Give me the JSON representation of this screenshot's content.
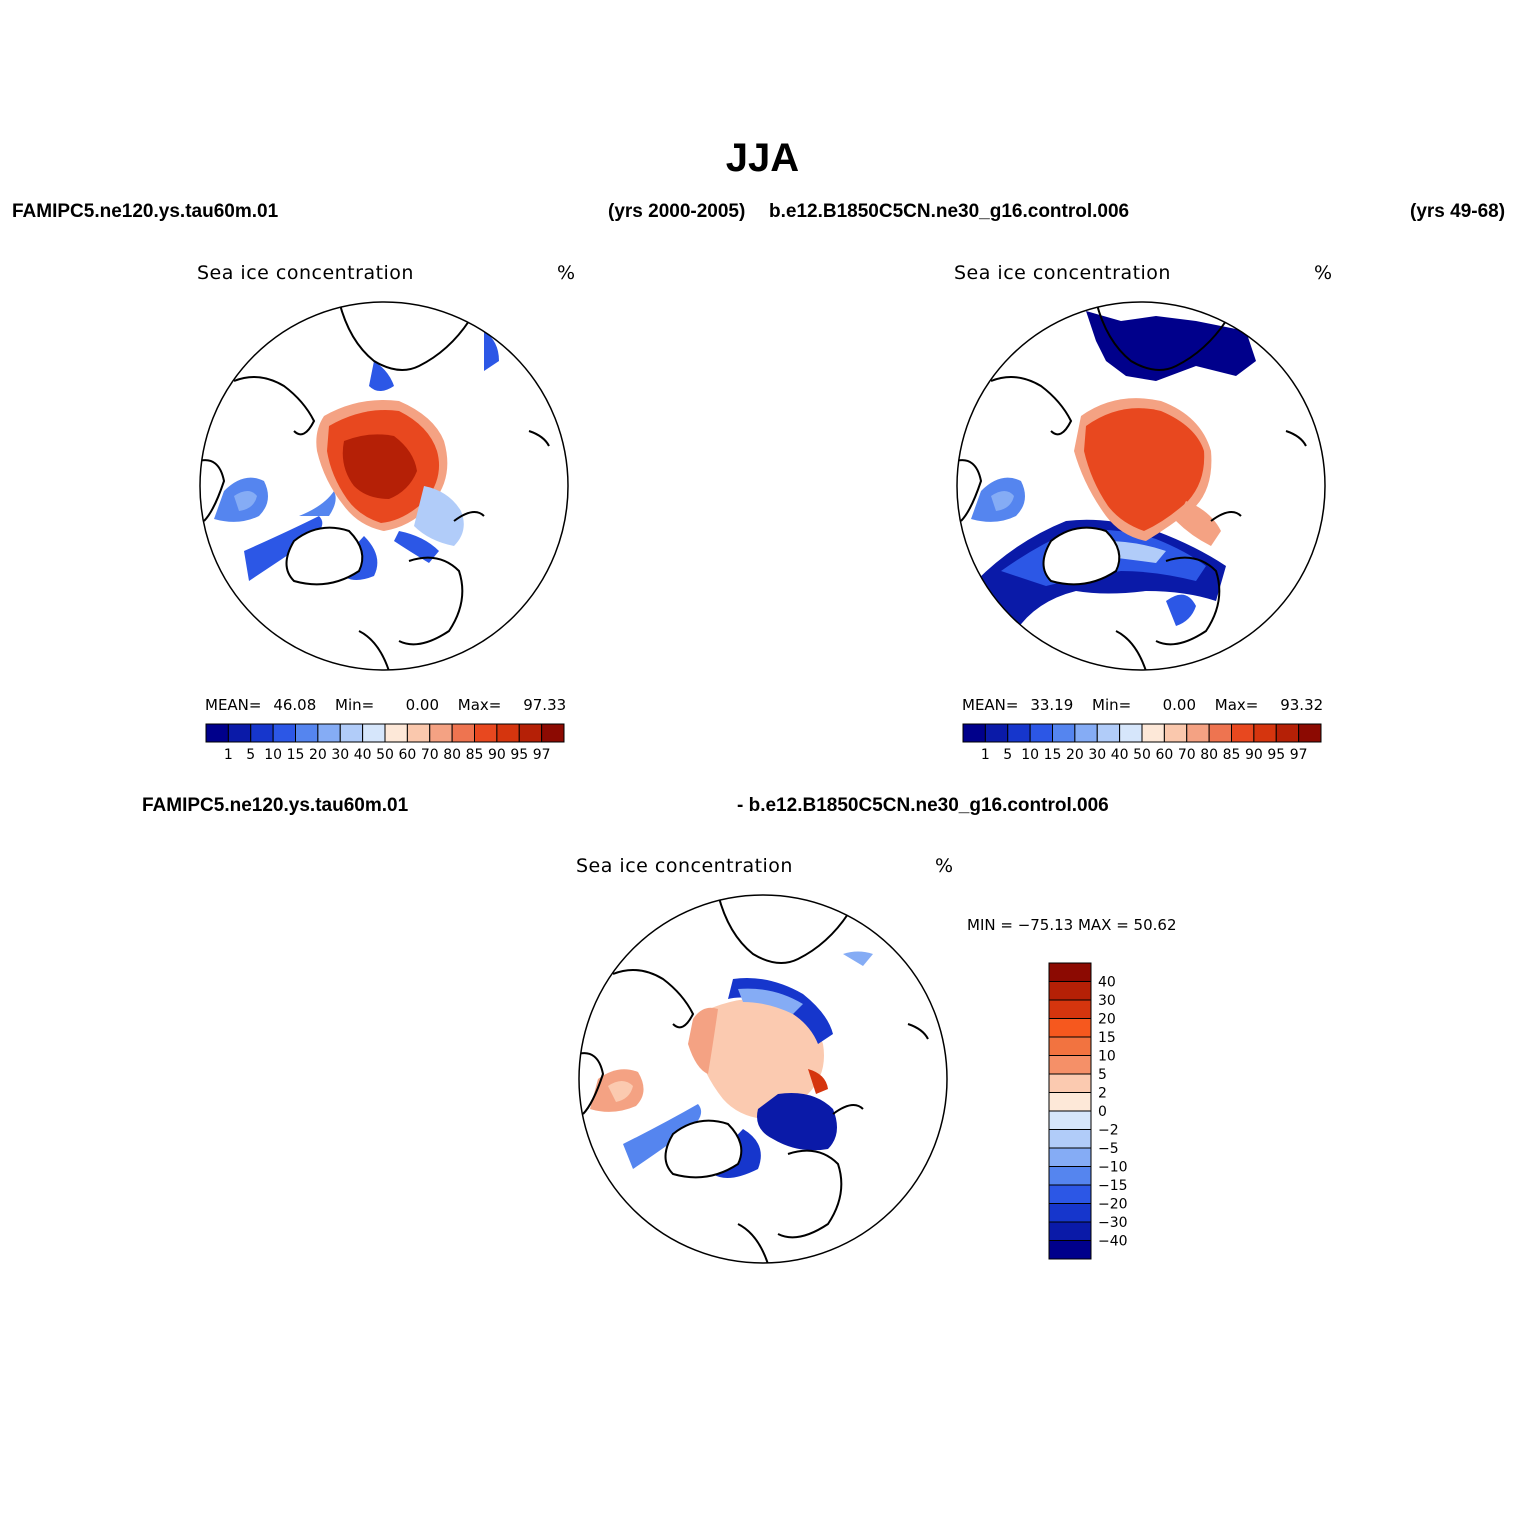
{
  "title": "JJA",
  "header": {
    "case1": "FAMIPC5.ne120.ys.tau60m.01",
    "case1_years": "(yrs 2000-2005)",
    "case2": "b.e12.B1850C5CN.ne30_g16.control.006",
    "case2_years": "(yrs 49-68)"
  },
  "panels": [
    {
      "title": "Sea ice concentration",
      "units": "%",
      "mean_label": "MEAN=",
      "mean_value": "46.08",
      "min_label": "Min=",
      "min_value": "0.00",
      "max_label": "Max=",
      "max_value": "97.33"
    },
    {
      "title": "Sea ice concentration",
      "units": "%",
      "mean_label": "MEAN=",
      "mean_value": "33.19",
      "min_label": "Min=",
      "min_value": "0.00",
      "max_label": "Max=",
      "max_value": "93.32"
    }
  ],
  "diff": {
    "case_a": "FAMIPC5.ne120.ys.tau60m.01",
    "case_b": "- b.e12.B1850C5CN.ne30_g16.control.006",
    "title": "Sea ice concentration",
    "units": "%",
    "minmax": "MIN = −75.13 MAX =   50.62"
  },
  "colorbar_main": {
    "colors": [
      "#00008b",
      "#0a1aa8",
      "#1636cc",
      "#2c57e6",
      "#5585ef",
      "#85acf5",
      "#b1ccf9",
      "#d6e6fb",
      "#fde8d8",
      "#fac8ad",
      "#f4a283",
      "#ee7450",
      "#e8481f",
      "#d5350e",
      "#b52006",
      "#8c0a02"
    ],
    "labels": [
      "1",
      "5",
      "10",
      "15",
      "20",
      "30",
      "40",
      "50",
      "60",
      "70",
      "80",
      "85",
      "90",
      "95",
      "97"
    ]
  },
  "colorbar_diff": {
    "colors": [
      "#8c0a02",
      "#b52006",
      "#d5350e",
      "#f6581e",
      "#f27340",
      "#f59068",
      "#fbcab0",
      "#fde8d8",
      "#d6e6fb",
      "#b1ccf9",
      "#85acf5",
      "#5585ef",
      "#2c57e6",
      "#1636cc",
      "#0a1aa8",
      "#00008b"
    ],
    "labels": [
      "40",
      "30",
      "20",
      "15",
      "10",
      "5",
      "2",
      "0",
      "−2",
      "−5",
      "−10",
      "−15",
      "−20",
      "−30",
      "−40"
    ]
  },
  "chart_data": {
    "type": "heatmap",
    "description_fields": "polar stereographic maps of JJA sea ice concentration (%)",
    "panels": [
      {
        "case": "FAMIPC5.ne120.ys.tau60m.01",
        "years": "2000-2005",
        "mean": 46.08,
        "min": 0.0,
        "max": 97.33
      },
      {
        "case": "b.e12.B1850C5CN.ne30_g16.control.006",
        "years": "49-68",
        "mean": 33.19,
        "min": 0.0,
        "max": 93.32
      },
      {
        "case": "difference",
        "min": -75.13,
        "max": 50.62
      }
    ],
    "levels_main": [
      1,
      5,
      10,
      15,
      20,
      30,
      40,
      50,
      60,
      70,
      80,
      85,
      90,
      95,
      97
    ],
    "levels_diff": [
      -40,
      -30,
      -20,
      -15,
      -10,
      -5,
      -2,
      0,
      2,
      5,
      10,
      15,
      20,
      30,
      40
    ]
  }
}
